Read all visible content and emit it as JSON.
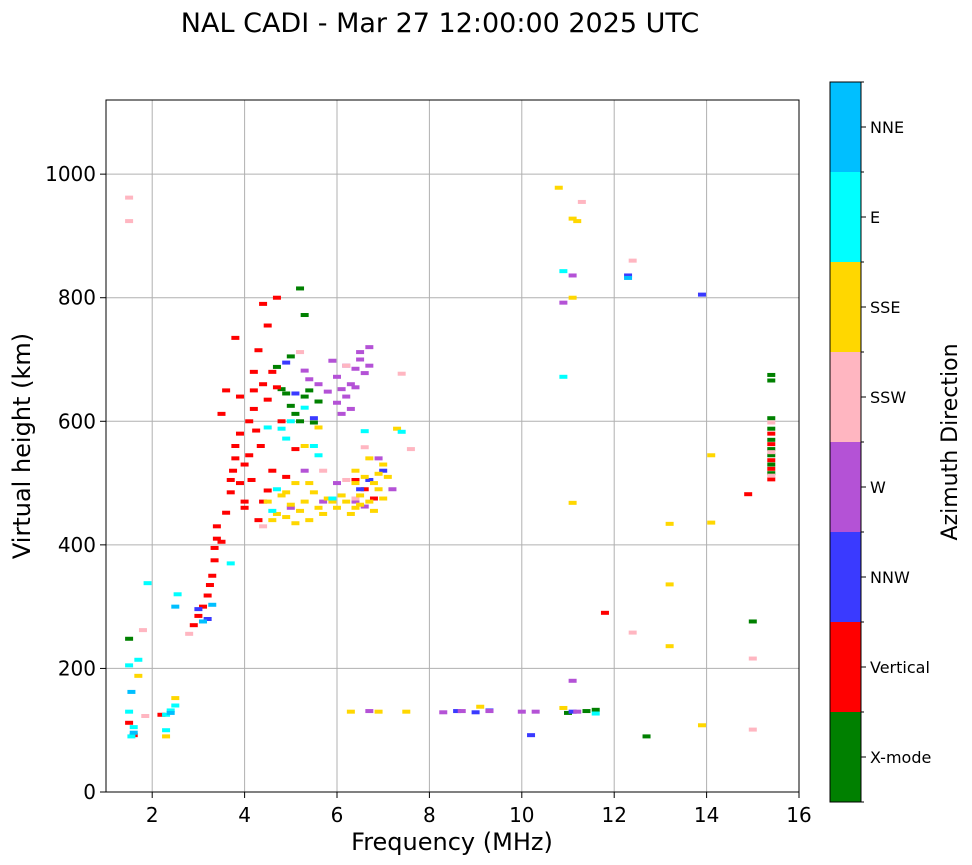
{
  "chart_data": {
    "type": "scatter",
    "title": "NAL CADI - Mar 27 12:00:00 2025 UTC",
    "xlabel": "Frequency (MHz)",
    "ylabel": "Virtual height (km)",
    "xlim": [
      1,
      16
    ],
    "ylim": [
      0,
      1120
    ],
    "xticks": [
      2,
      4,
      6,
      8,
      10,
      12,
      14,
      16
    ],
    "yticks": [
      0,
      200,
      400,
      600,
      800,
      1000
    ],
    "grid": true,
    "colorbar": {
      "label": "Azimuth Direction",
      "categories": [
        {
          "name": "X-mode",
          "color": "#008000"
        },
        {
          "name": "Vertical",
          "color": "#ff0000"
        },
        {
          "name": "NNW",
          "color": "#3a3aff"
        },
        {
          "name": "W",
          "color": "#b452d6"
        },
        {
          "name": "SSW",
          "color": "#ffb6c1"
        },
        {
          "name": "SSE",
          "color": "#ffd700"
        },
        {
          "name": "E",
          "color": "#00ffff"
        },
        {
          "name": "NNE",
          "color": "#00bfff"
        }
      ]
    },
    "series": [
      {
        "name": "X-mode",
        "points": [
          [
            1.5,
            248
          ],
          [
            4.7,
            688
          ],
          [
            4.9,
            645
          ],
          [
            5.0,
            625
          ],
          [
            5.1,
            612
          ],
          [
            5.2,
            600
          ],
          [
            5.3,
            640
          ],
          [
            5.0,
            705
          ],
          [
            5.2,
            815
          ],
          [
            5.3,
            772
          ],
          [
            5.4,
            650
          ],
          [
            5.5,
            598
          ],
          [
            4.8,
            652
          ],
          [
            5.6,
            632
          ],
          [
            11.0,
            128
          ],
          [
            11.4,
            131
          ],
          [
            11.6,
            133
          ],
          [
            12.7,
            90
          ],
          [
            15.0,
            276
          ],
          [
            15.4,
            675
          ],
          [
            15.4,
            666
          ],
          [
            15.4,
            605
          ],
          [
            15.4,
            588
          ],
          [
            15.4,
            570
          ],
          [
            15.4,
            555
          ],
          [
            15.4,
            545
          ],
          [
            15.4,
            530
          ],
          [
            15.4,
            516
          ]
        ]
      },
      {
        "name": "Vertical",
        "points": [
          [
            1.5,
            112
          ],
          [
            1.6,
            92
          ],
          [
            2.2,
            125
          ],
          [
            2.9,
            270
          ],
          [
            3.0,
            285
          ],
          [
            3.1,
            300
          ],
          [
            3.2,
            318
          ],
          [
            3.25,
            335
          ],
          [
            3.3,
            350
          ],
          [
            3.35,
            375
          ],
          [
            3.35,
            395
          ],
          [
            3.4,
            410
          ],
          [
            3.4,
            430
          ],
          [
            3.5,
            405
          ],
          [
            3.6,
            452
          ],
          [
            3.7,
            485
          ],
          [
            3.7,
            505
          ],
          [
            3.75,
            520
          ],
          [
            3.8,
            540
          ],
          [
            3.8,
            560
          ],
          [
            3.9,
            580
          ],
          [
            3.9,
            500
          ],
          [
            4.0,
            470
          ],
          [
            4.0,
            530
          ],
          [
            4.0,
            460
          ],
          [
            4.1,
            600
          ],
          [
            4.1,
            545
          ],
          [
            4.15,
            505
          ],
          [
            4.2,
            620
          ],
          [
            4.2,
            650
          ],
          [
            4.25,
            585
          ],
          [
            4.3,
            715
          ],
          [
            4.35,
            560
          ],
          [
            4.4,
            660
          ],
          [
            4.4,
            790
          ],
          [
            4.5,
            635
          ],
          [
            4.5,
            755
          ],
          [
            4.6,
            680
          ],
          [
            4.6,
            520
          ],
          [
            4.7,
            800
          ],
          [
            4.7,
            655
          ],
          [
            4.3,
            440
          ],
          [
            4.4,
            470
          ],
          [
            4.5,
            488
          ],
          [
            3.5,
            612
          ],
          [
            3.6,
            650
          ],
          [
            3.8,
            735
          ],
          [
            4.8,
            600
          ],
          [
            4.9,
            510
          ],
          [
            5.1,
            555
          ],
          [
            6.4,
            505
          ],
          [
            6.6,
            490
          ],
          [
            6.8,
            475
          ],
          [
            3.9,
            640
          ],
          [
            4.2,
            680
          ],
          [
            11.8,
            290
          ],
          [
            14.9,
            482
          ],
          [
            15.4,
            580
          ],
          [
            15.4,
            563
          ],
          [
            15.4,
            537
          ],
          [
            15.4,
            523
          ],
          [
            15.4,
            506
          ]
        ]
      },
      {
        "name": "NNW",
        "points": [
          [
            3.0,
            296
          ],
          [
            3.2,
            280
          ],
          [
            4.9,
            695
          ],
          [
            5.1,
            645
          ],
          [
            5.5,
            605
          ],
          [
            6.7,
            505
          ],
          [
            7.0,
            520
          ],
          [
            6.5,
            490
          ],
          [
            8.6,
            131
          ],
          [
            9.0,
            129
          ],
          [
            9.3,
            132
          ],
          [
            10.2,
            92
          ],
          [
            11.1,
            130
          ],
          [
            12.3,
            836
          ],
          [
            13.9,
            805
          ]
        ]
      },
      {
        "name": "W",
        "points": [
          [
            6.0,
            672
          ],
          [
            6.1,
            652
          ],
          [
            6.2,
            640
          ],
          [
            6.3,
            660
          ],
          [
            6.4,
            685
          ],
          [
            6.5,
            700
          ],
          [
            6.6,
            678
          ],
          [
            6.7,
            690
          ],
          [
            6.5,
            712
          ],
          [
            6.0,
            630
          ],
          [
            5.8,
            648
          ],
          [
            6.1,
            612
          ],
          [
            6.3,
            620
          ],
          [
            5.9,
            698
          ],
          [
            6.2,
            690
          ],
          [
            5.4,
            668
          ],
          [
            5.6,
            660
          ],
          [
            5.3,
            682
          ],
          [
            6.7,
            720
          ],
          [
            6.4,
            655
          ],
          [
            6.0,
            500
          ],
          [
            6.4,
            470
          ],
          [
            6.9,
            540
          ],
          [
            7.2,
            490
          ],
          [
            5.7,
            470
          ],
          [
            5.0,
            460
          ],
          [
            5.3,
            520
          ],
          [
            6.6,
            462
          ],
          [
            6.7,
            131
          ],
          [
            8.3,
            129
          ],
          [
            8.7,
            131
          ],
          [
            9.3,
            131
          ],
          [
            10.0,
            130
          ],
          [
            10.3,
            130
          ],
          [
            11.1,
            180
          ],
          [
            11.2,
            130
          ],
          [
            11.1,
            836
          ],
          [
            10.9,
            792
          ]
        ]
      },
      {
        "name": "SSW",
        "points": [
          [
            1.5,
            962
          ],
          [
            1.5,
            924
          ],
          [
            1.8,
            262
          ],
          [
            1.85,
            123
          ],
          [
            2.8,
            256
          ],
          [
            4.4,
            430
          ],
          [
            5.7,
            520
          ],
          [
            6.2,
            505
          ],
          [
            6.4,
            475
          ],
          [
            6.6,
            558
          ],
          [
            6.2,
            690
          ],
          [
            7.4,
            677
          ],
          [
            7.6,
            555
          ],
          [
            5.2,
            712
          ],
          [
            11.3,
            955
          ],
          [
            12.4,
            860
          ],
          [
            12.4,
            258
          ],
          [
            15.0,
            216
          ],
          [
            15.0,
            101
          ],
          [
            15.4,
            598
          ],
          [
            15.4,
            550
          ],
          [
            15.4,
            512
          ]
        ]
      },
      {
        "name": "SSE",
        "points": [
          [
            4.5,
            470
          ],
          [
            4.6,
            440
          ],
          [
            4.7,
            450
          ],
          [
            4.8,
            480
          ],
          [
            4.9,
            445
          ],
          [
            5.0,
            465
          ],
          [
            5.1,
            435
          ],
          [
            5.2,
            455
          ],
          [
            5.3,
            470
          ],
          [
            5.4,
            440
          ],
          [
            5.5,
            485
          ],
          [
            5.6,
            460
          ],
          [
            5.7,
            450
          ],
          [
            5.8,
            475
          ],
          [
            5.9,
            470
          ],
          [
            6.0,
            460
          ],
          [
            6.1,
            480
          ],
          [
            6.2,
            470
          ],
          [
            6.3,
            450
          ],
          [
            6.4,
            500
          ],
          [
            6.4,
            520
          ],
          [
            6.5,
            480
          ],
          [
            6.6,
            510
          ],
          [
            6.7,
            470
          ],
          [
            6.8,
            500
          ],
          [
            6.9,
            490
          ],
          [
            7.0,
            530
          ],
          [
            7.1,
            510
          ],
          [
            6.4,
            460
          ],
          [
            6.5,
            465
          ],
          [
            6.8,
            455
          ],
          [
            7.0,
            475
          ],
          [
            6.7,
            540
          ],
          [
            7.3,
            588
          ],
          [
            6.9,
            515
          ],
          [
            5.1,
            500
          ],
          [
            5.4,
            500
          ],
          [
            5.6,
            590
          ],
          [
            5.3,
            560
          ],
          [
            4.9,
            485
          ],
          [
            1.7,
            188
          ],
          [
            2.5,
            152
          ],
          [
            2.3,
            90
          ],
          [
            6.3,
            130
          ],
          [
            6.9,
            130
          ],
          [
            7.5,
            130
          ],
          [
            9.1,
            138
          ],
          [
            10.8,
            978
          ],
          [
            11.1,
            928
          ],
          [
            11.2,
            924
          ],
          [
            10.9,
            136
          ],
          [
            11.1,
            800
          ],
          [
            11.1,
            468
          ],
          [
            13.2,
            434
          ],
          [
            14.1,
            436
          ],
          [
            14.1,
            545
          ],
          [
            13.2,
            336
          ],
          [
            13.2,
            236
          ],
          [
            13.9,
            108
          ]
        ]
      },
      {
        "name": "E",
        "points": [
          [
            1.5,
            205
          ],
          [
            1.5,
            130
          ],
          [
            1.6,
            105
          ],
          [
            1.55,
            90
          ],
          [
            1.7,
            214
          ],
          [
            1.9,
            338
          ],
          [
            2.3,
            125
          ],
          [
            2.4,
            132
          ],
          [
            2.5,
            140
          ],
          [
            2.55,
            320
          ],
          [
            2.3,
            100
          ],
          [
            3.7,
            370
          ],
          [
            4.6,
            455
          ],
          [
            4.7,
            490
          ],
          [
            4.8,
            588
          ],
          [
            4.9,
            572
          ],
          [
            5.0,
            600
          ],
          [
            5.3,
            622
          ],
          [
            5.5,
            560
          ],
          [
            5.6,
            545
          ],
          [
            4.5,
            590
          ],
          [
            5.9,
            475
          ],
          [
            6.6,
            584
          ],
          [
            7.4,
            583
          ],
          [
            10.9,
            843
          ],
          [
            10.9,
            672
          ],
          [
            11.6,
            127
          ]
        ]
      },
      {
        "name": "NNE",
        "points": [
          [
            1.6,
            96
          ],
          [
            1.55,
            162
          ],
          [
            2.4,
            128
          ],
          [
            2.5,
            300
          ],
          [
            3.1,
            276
          ],
          [
            3.3,
            303
          ],
          [
            12.3,
            832
          ]
        ]
      }
    ]
  }
}
